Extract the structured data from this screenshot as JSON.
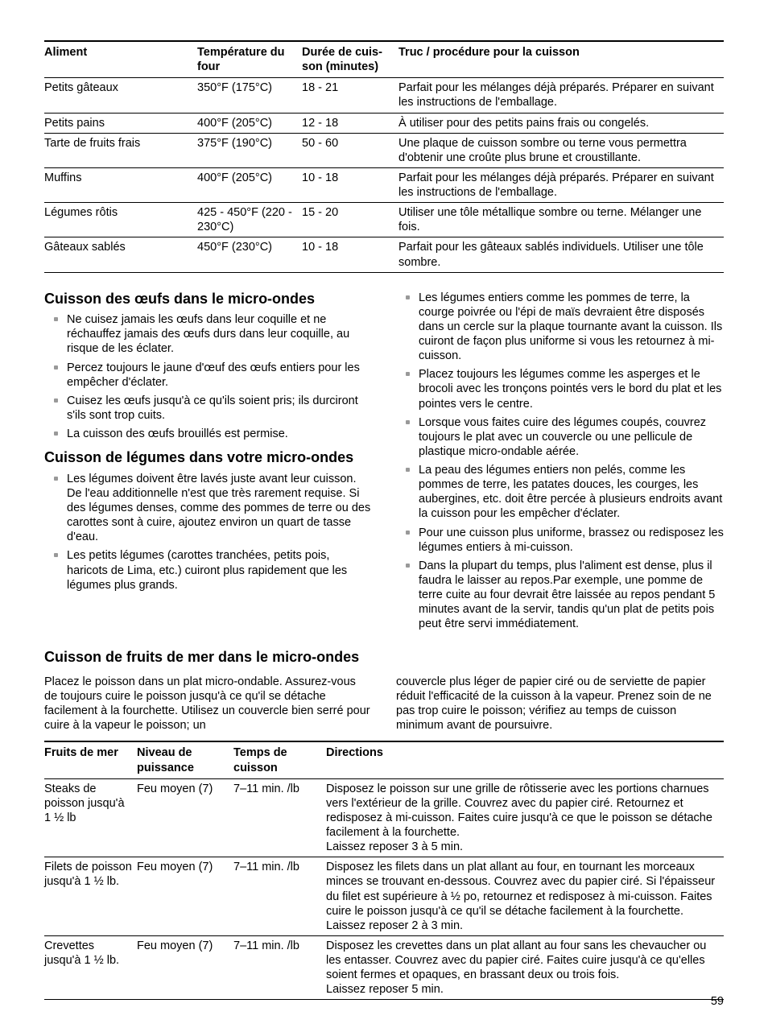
{
  "table1": {
    "headers": [
      "Aliment",
      "Température du four",
      "Durée de cuis­son (minutes)",
      "Truc / procédure pour la cuisson"
    ],
    "rows": [
      [
        "Petits gâteaux",
        "350°F (175°C)",
        "18 - 21",
        "Parfait pour les mélanges déjà préparés. Préparer en suivant les instructions de l'emballage."
      ],
      [
        "Petits pains",
        "400°F (205°C)",
        "12 - 18",
        "À utiliser pour des petits pains frais ou congelés."
      ],
      [
        "Tarte de fruits frais",
        "375°F (190°C)",
        "50 - 60",
        "Une plaque de cuisson sombre ou terne vous permettra d'obtenir une croûte plus brune et croustillante."
      ],
      [
        "Muffins",
        "400°F (205°C)",
        "10 - 18",
        "Parfait pour les mélanges déjà préparés. Préparer en suivant les instructions de l'emballage."
      ],
      [
        "Légumes rôtis",
        "425 - 450°F (220 - 230°C)",
        "15 - 20",
        "Utiliser une tôle métallique sombre ou terne. Mélanger une fois."
      ],
      [
        "Gâteaux sablés",
        "450°F (230°C)",
        "10 - 18",
        "Parfait pour les gâteaux sablés individuels. Utiliser une tôle sombre."
      ]
    ]
  },
  "section_eggs": {
    "title": "Cuisson des œufs dans le micro-ondes",
    "items": [
      "Ne cuisez jamais les œufs dans leur coquille et ne réchauffez jamais des œufs durs dans leur coquille, au risque de les éclater.",
      "Percez toujours le jaune d'œuf des œufs entiers pour les empêcher d'éclater.",
      "Cuisez les œufs jusqu'à ce qu'ils soient pris; ils durciront s'ils sont trop cuits.",
      "La cuisson des œufs brouillés est permise."
    ]
  },
  "section_veg": {
    "title": "Cuisson de légumes dans votre micro-ondes",
    "items_left": [
      "Les légumes doivent être lavés juste avant leur cuisson. De l'eau additionnelle n'est que très rarement requise. Si des légumes denses, comme des pommes de terre ou des carottes sont à cuire, ajoutez environ un quart de tasse d'eau.",
      "Les petits légumes (carottes tranchées, petits pois, haricots de Lima, etc.) cuiront plus rapidement que les légumes plus grands."
    ],
    "items_right": [
      "Les légumes entiers comme les pommes de terre, la courge poivrée ou l'épi de maïs devraient être disposés dans un cercle sur la plaque tournante avant la cuisson. Ils cuiront de façon plus uniforme si vous les retournez à mi-cuisson.",
      "Placez toujours les légumes comme les asperges et le brocoli avec les tronçons pointés vers le bord du plat et les pointes vers le centre.",
      "Lorsque vous faites cuire des légumes coupés, couvrez toujours le plat avec un couvercle ou une pellicule de plastique micro-ondable aérée.",
      "La peau des légumes entiers non pelés, comme les pommes de terre, les patates douces, les courges, les aubergines, etc. doit être percée à plusieurs endroits avant la cuisson pour les empêcher d'éclater.",
      "Pour une cuisson plus uniforme, brassez ou redisposez les légumes entiers à mi-cuisson.",
      "Dans la plupart du temps, plus l'aliment est dense, plus il faudra le laisser au repos.Par exemple, une pomme de terre cuite au four devrait être laissée au repos pendant 5  minutes avant de la servir, tandis qu'un plat de petits pois peut être servi immédiatement."
    ]
  },
  "section_seafood": {
    "title": "Cuisson de fruits de mer dans le micro-ondes",
    "intro_left": "Placez le poisson dans un plat micro-ondable. Assurez-vous de toujours cuire le poisson jusqu'à ce qu'il se détache facilement à la fourchette. Utilisez un couvercle bien serré pour cuire à la vapeur le poisson; un",
    "intro_right": "couvercle plus léger de papier ciré ou de serviette de papier réduit l'efficacité de la cuisson à la vapeur. Prenez soin de ne pas trop cuire le poisson; vérifiez au temps de cuisson minimum avant de poursuivre."
  },
  "table2": {
    "headers": [
      "Fruits de mer",
      "Niveau de puissance",
      "Temps de cuisson",
      "Directions"
    ],
    "rows": [
      [
        "Steaks de poisson jusqu'à 1 ½ lb",
        "Feu moyen (7)",
        "7–11 min. /lb",
        "Disposez le poisson sur une grille de rôtisserie avec les portions charnues vers l'extérieur de la grille.  Couvrez avec du papier ciré. Retournez et redisposez à mi-cuisson. Faites cuire jusqu'à ce que le poisson se détache facilement à la fourchette.\nLaissez reposer 3 à 5 min."
      ],
      [
        "Filets de pois­son jusqu'à 1 ½ lb.",
        "Feu moyen (7)",
        "7–11 min. /lb",
        "Disposez les filets dans un plat allant au four, en tournant les mor­ceaux minces se trouvant en-dessous. Couvrez avec du papier ciré. Si l'épaisseur du filet est supérieure à ½ po, retournez et redisposez à mi-cuisson. Faites cuire le poisson jusqu'à ce qu'il se détache facilement à la fourchette.\nLaissez reposer 2 à 3 min."
      ],
      [
        "Crevettes jusqu'à 1 ½ lb.",
        "Feu moyen (7)",
        "7–11 min. /lb",
        "Disposez les crevettes dans un plat allant au four sans les chevau­cher ou les entasser. Couvrez avec du papier ciré. Faites cuire jusqu'à ce qu'elles soient fermes et opaques, en brassant deux ou trois fois.\nLaissez reposer 5 min."
      ]
    ]
  },
  "page_number": "59"
}
